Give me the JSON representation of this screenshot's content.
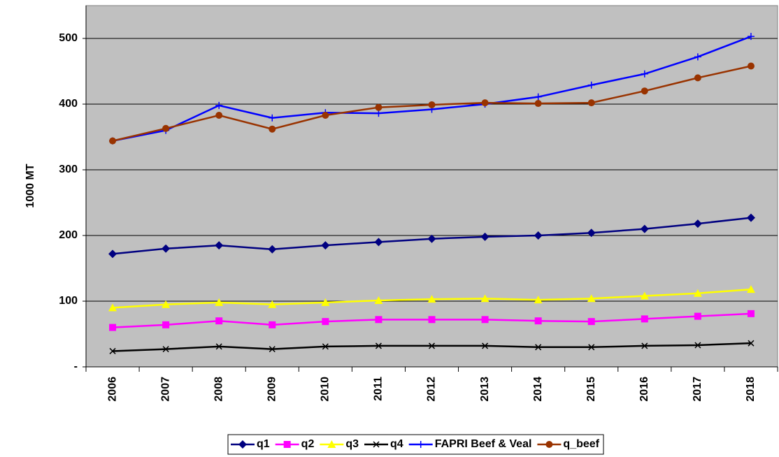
{
  "chart_data": {
    "type": "line",
    "y_label": "1000 MT",
    "categories": [
      "2006",
      "2007",
      "2008",
      "2009",
      "2010",
      "2011",
      "2012",
      "2013",
      "2014",
      "2015",
      "2016",
      "2017",
      "2018"
    ],
    "ylim": [
      0,
      550
    ],
    "yticks": [
      {
        "value": 0,
        "label": "-"
      },
      100,
      200,
      300,
      400,
      500
    ],
    "grid": true,
    "background": "#c0c0c0",
    "legend": "bottom",
    "series": [
      {
        "name": "q1",
        "color": "#000080",
        "marker": "diamond",
        "values": [
          172,
          180,
          185,
          179,
          185,
          190,
          195,
          198,
          200,
          204,
          210,
          218,
          227
        ]
      },
      {
        "name": "q2",
        "color": "#ff00ff",
        "marker": "square",
        "values": [
          60,
          64,
          70,
          64,
          69,
          72,
          72,
          72,
          70,
          69,
          73,
          77,
          81
        ]
      },
      {
        "name": "q3",
        "color": "#ffff00",
        "marker": "triangle",
        "values": [
          90,
          95,
          98,
          95,
          98,
          101,
          103,
          104,
          102,
          104,
          108,
          112,
          118
        ]
      },
      {
        "name": "q4",
        "color": "#000000",
        "marker": "x",
        "values": [
          24,
          27,
          31,
          27,
          31,
          32,
          32,
          32,
          30,
          30,
          32,
          33,
          36
        ]
      },
      {
        "name": "FAPRI Beef & Veal",
        "color": "#0000ff",
        "marker": "plus",
        "values": [
          344,
          360,
          398,
          379,
          387,
          386,
          392,
          400,
          411,
          429,
          446,
          472,
          503
        ]
      },
      {
        "name": "q_beef",
        "color": "#993300",
        "marker": "circle",
        "values": [
          344,
          363,
          383,
          362,
          383,
          395,
          399,
          402,
          401,
          402,
          420,
          440,
          458
        ]
      }
    ]
  }
}
